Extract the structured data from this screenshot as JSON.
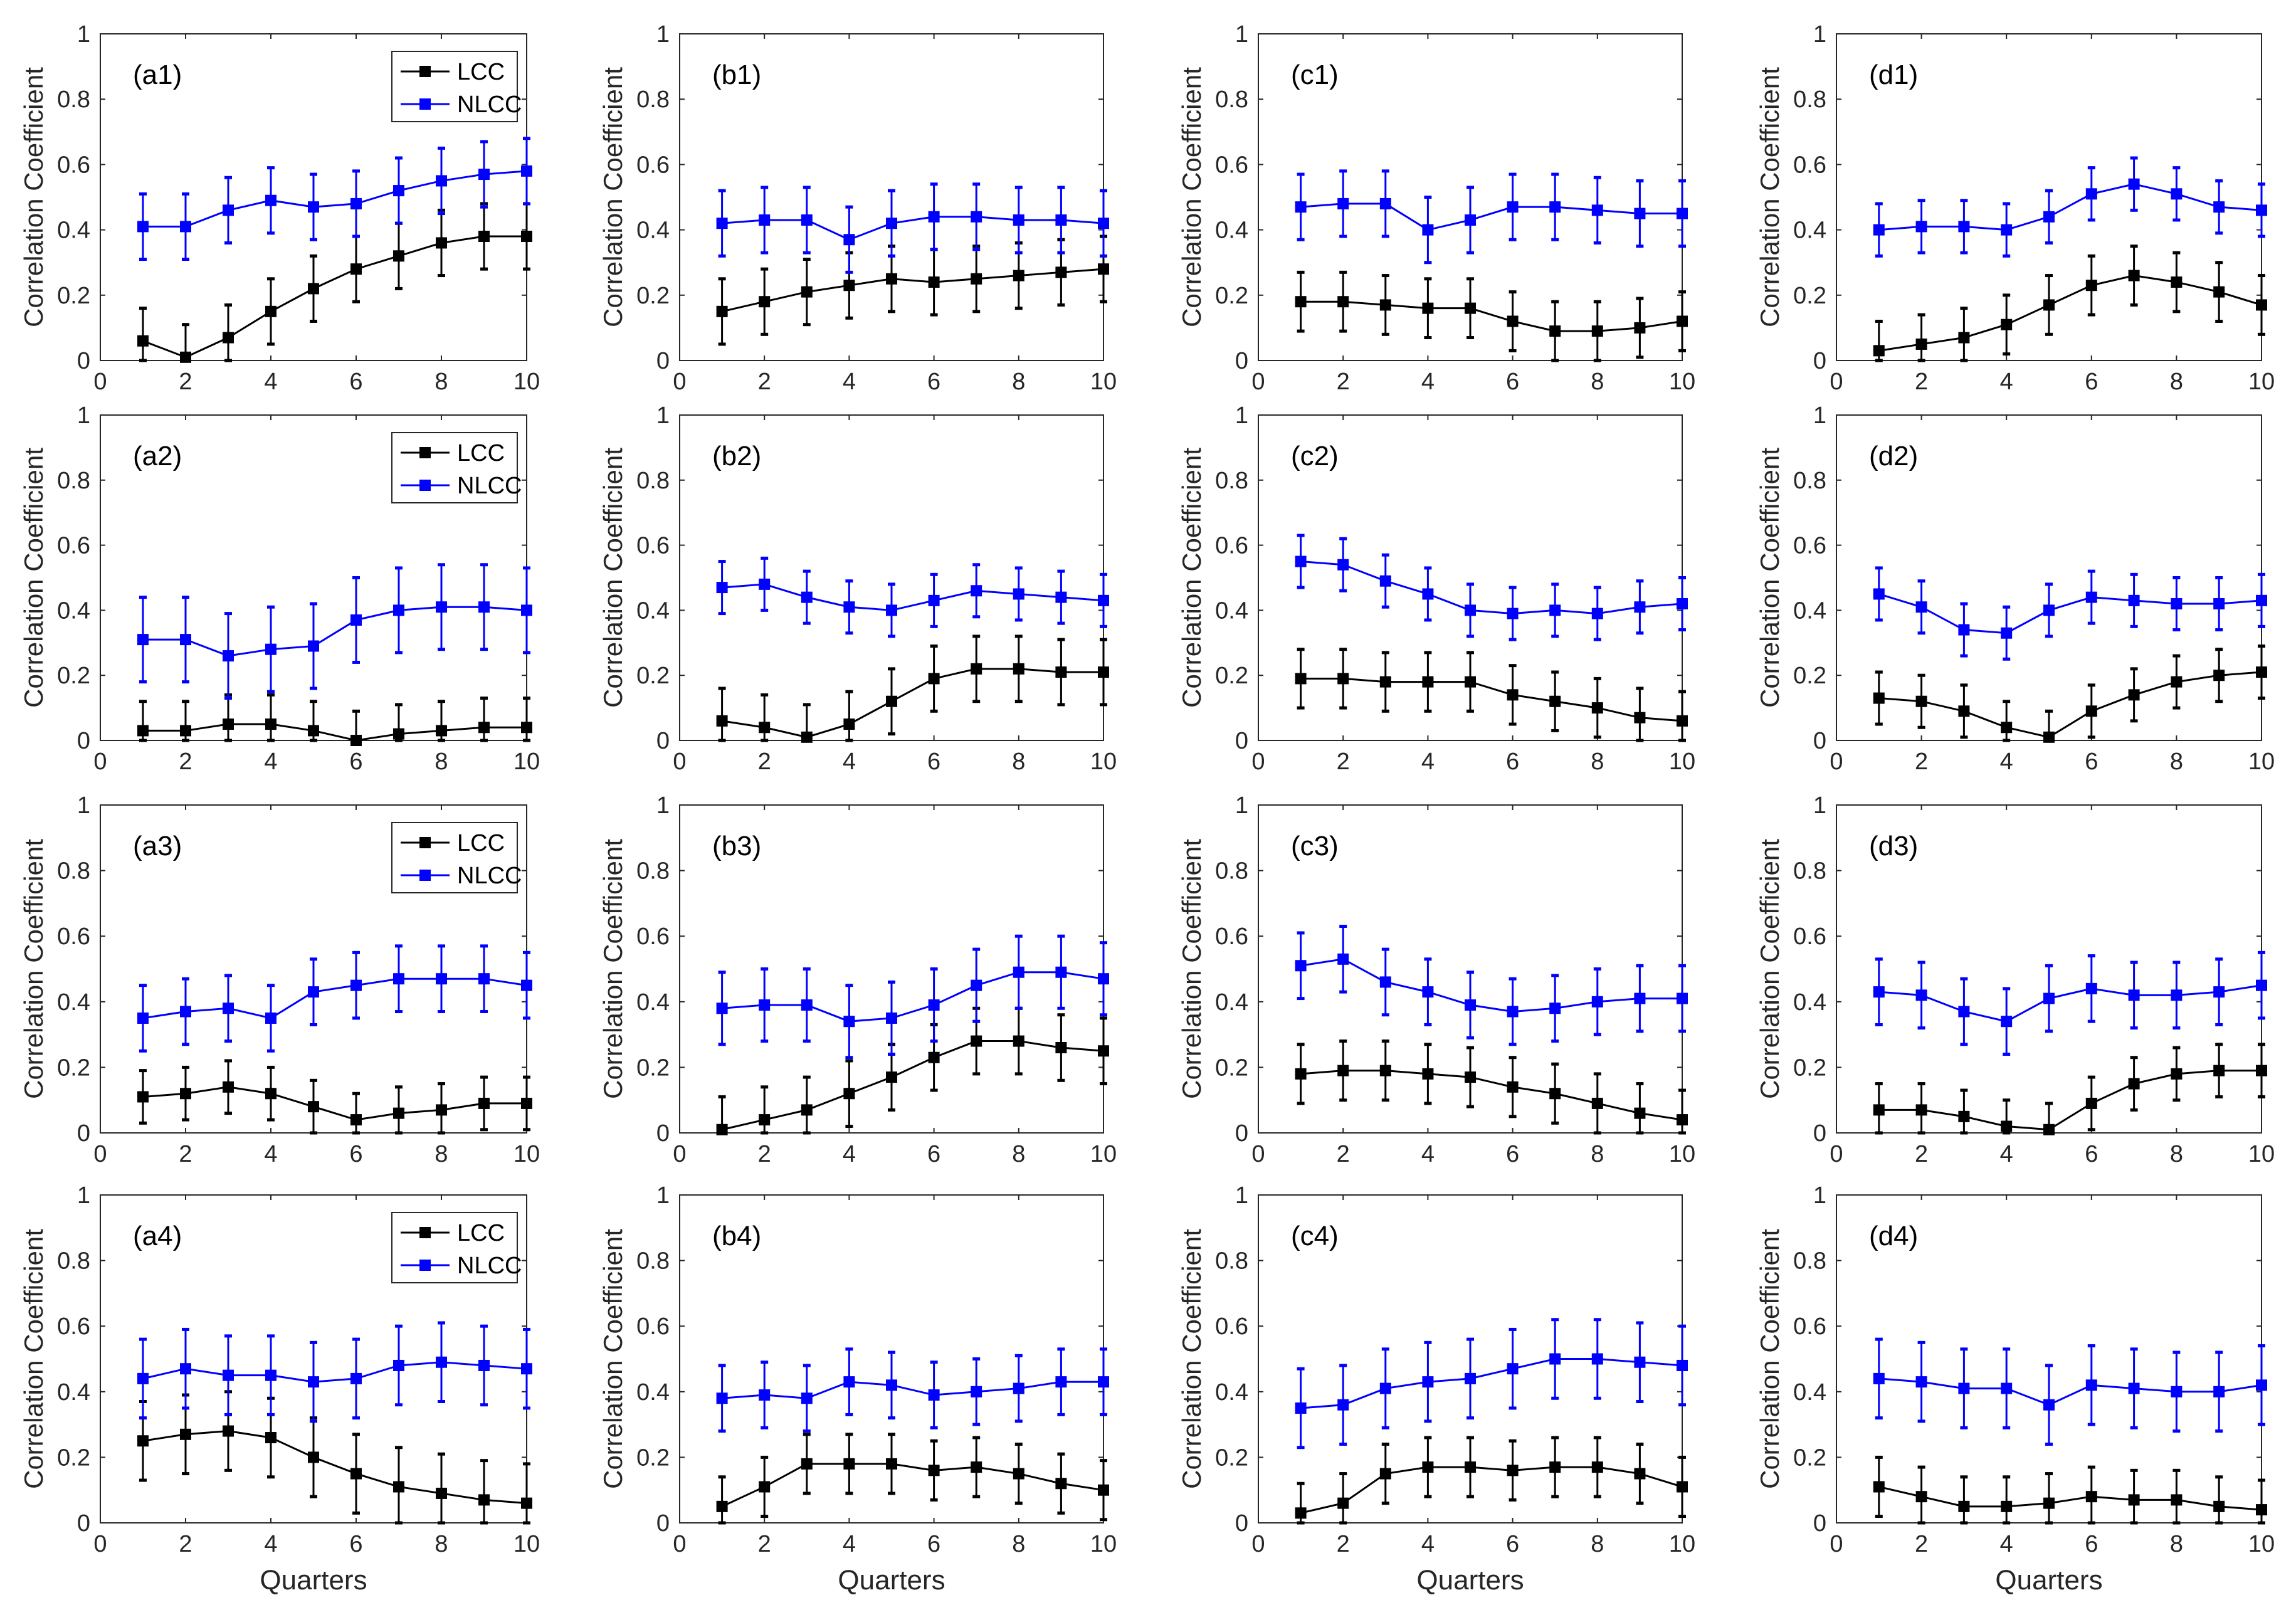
{
  "chart_data": {
    "type": "line",
    "layout": "4x4 grid of subplots, error bars on each point",
    "x": [
      1,
      2,
      3,
      4,
      5,
      6,
      7,
      8,
      9,
      10
    ],
    "xlim": [
      0,
      10
    ],
    "ylim": [
      0,
      1
    ],
    "xticks": [
      "0",
      "2",
      "4",
      "6",
      "8",
      "10"
    ],
    "yticks": [
      "0",
      "0.2",
      "0.4",
      "0.6",
      "0.8",
      "1"
    ],
    "xlabel": "Quarters",
    "ylabel": "Correlation Coefficient",
    "legend": {
      "placement": "top-right",
      "entries": [
        "LCC",
        "NLCC"
      ]
    },
    "colors": {
      "LCC": "#000000",
      "NLCC": "#0000ff"
    },
    "panels": [
      {
        "label": "(a1)",
        "legend": true,
        "LCC": [
          0.06,
          0.01,
          0.07,
          0.15,
          0.22,
          0.28,
          0.32,
          0.36,
          0.38,
          0.38
        ],
        "LCC_err": 0.1,
        "NLCC": [
          0.41,
          0.41,
          0.46,
          0.49,
          0.47,
          0.48,
          0.52,
          0.55,
          0.57,
          0.58
        ],
        "NLCC_err": 0.1
      },
      {
        "label": "(b1)",
        "LCC": [
          0.15,
          0.18,
          0.21,
          0.23,
          0.25,
          0.24,
          0.25,
          0.26,
          0.27,
          0.28
        ],
        "LCC_err": 0.1,
        "NLCC": [
          0.42,
          0.43,
          0.43,
          0.37,
          0.42,
          0.44,
          0.44,
          0.43,
          0.43,
          0.42
        ],
        "NLCC_err": 0.1
      },
      {
        "label": "(c1)",
        "LCC": [
          0.18,
          0.18,
          0.17,
          0.16,
          0.16,
          0.12,
          0.09,
          0.09,
          0.1,
          0.12
        ],
        "LCC_err": 0.09,
        "NLCC": [
          0.47,
          0.48,
          0.48,
          0.4,
          0.43,
          0.47,
          0.47,
          0.46,
          0.45,
          0.45
        ],
        "NLCC_err": 0.1
      },
      {
        "label": "(d1)",
        "LCC": [
          0.03,
          0.05,
          0.07,
          0.11,
          0.17,
          0.23,
          0.26,
          0.24,
          0.21,
          0.17
        ],
        "LCC_err": 0.09,
        "NLCC": [
          0.4,
          0.41,
          0.41,
          0.4,
          0.44,
          0.51,
          0.54,
          0.51,
          0.47,
          0.46
        ],
        "NLCC_err": 0.08
      },
      {
        "label": "(a2)",
        "legend": true,
        "LCC": [
          0.03,
          0.03,
          0.05,
          0.05,
          0.03,
          0.0,
          0.02,
          0.03,
          0.04,
          0.04
        ],
        "LCC_err": 0.09,
        "NLCC": [
          0.31,
          0.31,
          0.26,
          0.28,
          0.29,
          0.37,
          0.4,
          0.41,
          0.41,
          0.4
        ],
        "NLCC_err": 0.13
      },
      {
        "label": "(b2)",
        "LCC": [
          0.06,
          0.04,
          0.01,
          0.05,
          0.12,
          0.19,
          0.22,
          0.22,
          0.21,
          0.21
        ],
        "LCC_err": 0.1,
        "NLCC": [
          0.47,
          0.48,
          0.44,
          0.41,
          0.4,
          0.43,
          0.46,
          0.45,
          0.44,
          0.43
        ],
        "NLCC_err": 0.08
      },
      {
        "label": "(c2)",
        "LCC": [
          0.19,
          0.19,
          0.18,
          0.18,
          0.18,
          0.14,
          0.12,
          0.1,
          0.07,
          0.06
        ],
        "LCC_err": 0.09,
        "NLCC": [
          0.55,
          0.54,
          0.49,
          0.45,
          0.4,
          0.39,
          0.4,
          0.39,
          0.41,
          0.42
        ],
        "NLCC_err": 0.08
      },
      {
        "label": "(d2)",
        "LCC": [
          0.13,
          0.12,
          0.09,
          0.04,
          0.01,
          0.09,
          0.14,
          0.18,
          0.2,
          0.21
        ],
        "LCC_err": 0.08,
        "NLCC": [
          0.45,
          0.41,
          0.34,
          0.33,
          0.4,
          0.44,
          0.43,
          0.42,
          0.42,
          0.43
        ],
        "NLCC_err": 0.08
      },
      {
        "label": "(a3)",
        "legend": true,
        "LCC": [
          0.11,
          0.12,
          0.14,
          0.12,
          0.08,
          0.04,
          0.06,
          0.07,
          0.09,
          0.09
        ],
        "LCC_err": 0.08,
        "NLCC": [
          0.35,
          0.37,
          0.38,
          0.35,
          0.43,
          0.45,
          0.47,
          0.47,
          0.47,
          0.45
        ],
        "NLCC_err": 0.1
      },
      {
        "label": "(b3)",
        "LCC": [
          0.01,
          0.04,
          0.07,
          0.12,
          0.17,
          0.23,
          0.28,
          0.28,
          0.26,
          0.25
        ],
        "LCC_err": 0.1,
        "NLCC": [
          0.38,
          0.39,
          0.39,
          0.34,
          0.35,
          0.39,
          0.45,
          0.49,
          0.49,
          0.47
        ],
        "NLCC_err": 0.11
      },
      {
        "label": "(c3)",
        "LCC": [
          0.18,
          0.19,
          0.19,
          0.18,
          0.17,
          0.14,
          0.12,
          0.09,
          0.06,
          0.04
        ],
        "LCC_err": 0.09,
        "NLCC": [
          0.51,
          0.53,
          0.46,
          0.43,
          0.39,
          0.37,
          0.38,
          0.4,
          0.41,
          0.41
        ],
        "NLCC_err": 0.1
      },
      {
        "label": "(d3)",
        "LCC": [
          0.07,
          0.07,
          0.05,
          0.02,
          0.01,
          0.09,
          0.15,
          0.18,
          0.19,
          0.19
        ],
        "LCC_err": 0.08,
        "NLCC": [
          0.43,
          0.42,
          0.37,
          0.34,
          0.41,
          0.44,
          0.42,
          0.42,
          0.43,
          0.45
        ],
        "NLCC_err": 0.1
      },
      {
        "label": "(a4)",
        "legend": true,
        "LCC": [
          0.25,
          0.27,
          0.28,
          0.26,
          0.2,
          0.15,
          0.11,
          0.09,
          0.07,
          0.06
        ],
        "LCC_err": 0.12,
        "NLCC": [
          0.44,
          0.47,
          0.45,
          0.45,
          0.43,
          0.44,
          0.48,
          0.49,
          0.48,
          0.47
        ],
        "NLCC_err": 0.12
      },
      {
        "label": "(b4)",
        "LCC": [
          0.05,
          0.11,
          0.18,
          0.18,
          0.18,
          0.16,
          0.17,
          0.15,
          0.12,
          0.1
        ],
        "LCC_err": 0.09,
        "NLCC": [
          0.38,
          0.39,
          0.38,
          0.43,
          0.42,
          0.39,
          0.4,
          0.41,
          0.43,
          0.43
        ],
        "NLCC_err": 0.1
      },
      {
        "label": "(c4)",
        "LCC": [
          0.03,
          0.06,
          0.15,
          0.17,
          0.17,
          0.16,
          0.17,
          0.17,
          0.15,
          0.11
        ],
        "LCC_err": 0.09,
        "NLCC": [
          0.35,
          0.36,
          0.41,
          0.43,
          0.44,
          0.47,
          0.5,
          0.5,
          0.49,
          0.48
        ],
        "NLCC_err": 0.12
      },
      {
        "label": "(d4)",
        "LCC": [
          0.11,
          0.08,
          0.05,
          0.05,
          0.06,
          0.08,
          0.07,
          0.07,
          0.05,
          0.04
        ],
        "LCC_err": 0.09,
        "NLCC": [
          0.44,
          0.43,
          0.41,
          0.41,
          0.36,
          0.42,
          0.41,
          0.4,
          0.4,
          0.42
        ],
        "NLCC_err": 0.12
      }
    ]
  }
}
